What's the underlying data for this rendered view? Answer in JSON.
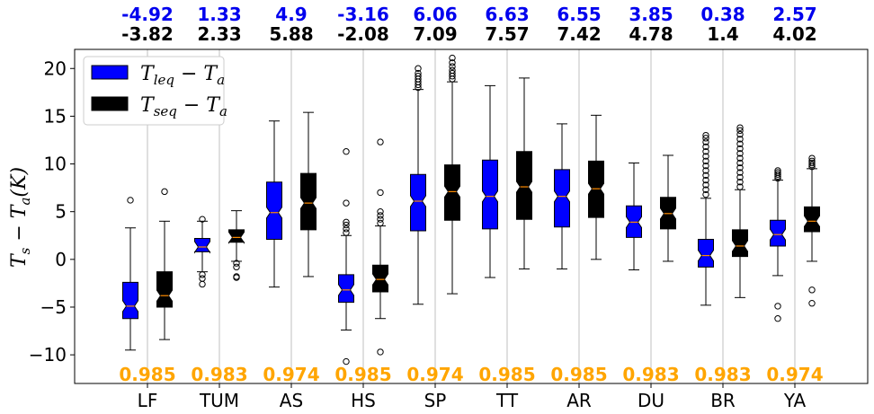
{
  "chart_data": {
    "type": "box",
    "categories": [
      "LF",
      "TUM",
      "AS",
      "HS",
      "SP",
      "TT",
      "AR",
      "DU",
      "BR",
      "YA"
    ],
    "ylabel": "T_s − T_a(K)",
    "ylim": [
      -13,
      22
    ],
    "yticks": [
      -10,
      -5,
      0,
      5,
      10,
      15,
      20
    ],
    "grid": "vertical",
    "legend_placement": "top-left",
    "top_values_blue": [
      "-4.92",
      "1.33",
      "4.9",
      "-3.16",
      "6.06",
      "6.63",
      "6.55",
      "3.85",
      "0.38",
      "2.57"
    ],
    "top_values_black": [
      "-3.82",
      "2.33",
      "5.88",
      "-2.08",
      "7.09",
      "7.57",
      "7.42",
      "4.78",
      "1.4",
      "4.02"
    ],
    "bottom_values_orange": [
      "0.985",
      "0.983",
      "0.974",
      "0.985",
      "0.974",
      "0.985",
      "0.985",
      "0.983",
      "0.983",
      "0.974"
    ],
    "series": [
      {
        "name": "T_leq − T_a",
        "color": "#0000ff",
        "boxes": [
          {
            "whislo": -9.5,
            "q1": -6.2,
            "med": -4.9,
            "q3": -2.4,
            "whishi": 3.3,
            "fliers": [
              6.2
            ]
          },
          {
            "whislo": -1.3,
            "q1": 0.8,
            "med": 1.3,
            "q3": 2.2,
            "whishi": 4.0,
            "fliers": [
              4.2,
              -1.6,
              -2.0,
              -2.6
            ]
          },
          {
            "whislo": -2.9,
            "q1": 2.1,
            "med": 4.9,
            "q3": 8.1,
            "whishi": 14.5,
            "fliers": []
          },
          {
            "whislo": -7.4,
            "q1": -4.5,
            "med": -3.2,
            "q3": -1.6,
            "whishi": 2.5,
            "fliers": [
              2.8,
              3.2,
              3.6,
              3.9,
              5.9,
              11.3,
              -10.7
            ]
          },
          {
            "whislo": -4.7,
            "q1": 3.0,
            "med": 6.1,
            "q3": 8.9,
            "whishi": 17.8,
            "fliers": [
              18.0,
              18.3,
              18.6,
              18.9,
              19.2,
              19.5,
              20.0
            ]
          },
          {
            "whislo": -1.9,
            "q1": 3.2,
            "med": 6.6,
            "q3": 10.4,
            "whishi": 18.2,
            "fliers": []
          },
          {
            "whislo": -1.0,
            "q1": 3.4,
            "med": 6.6,
            "q3": 9.4,
            "whishi": 14.2,
            "fliers": []
          },
          {
            "whislo": -1.1,
            "q1": 2.3,
            "med": 3.9,
            "q3": 5.6,
            "whishi": 10.1,
            "fliers": []
          },
          {
            "whislo": -4.8,
            "q1": -0.8,
            "med": 0.4,
            "q3": 2.1,
            "whishi": 6.4,
            "fliers": [
              6.8,
              7.3,
              7.8,
              8.3,
              8.8,
              9.3,
              9.8,
              10.3,
              10.8,
              11.3,
              11.8,
              12.3,
              12.7,
              13.0
            ]
          },
          {
            "whislo": -1.7,
            "q1": 1.4,
            "med": 2.6,
            "q3": 4.1,
            "whishi": 8.3,
            "fliers": [
              8.5,
              8.7,
              8.9,
              9.1,
              9.3,
              -4.9,
              -6.2
            ]
          }
        ]
      },
      {
        "name": "T_seq − T_a",
        "color": "#000000",
        "boxes": [
          {
            "whislo": -8.4,
            "q1": -5.0,
            "med": -3.8,
            "q3": -1.3,
            "whishi": 4.0,
            "fliers": [
              7.1
            ]
          },
          {
            "whislo": -0.2,
            "q1": 1.8,
            "med": 2.3,
            "q3": 3.1,
            "whishi": 5.1,
            "fliers": [
              -0.4,
              -0.8,
              -1.8,
              -1.9
            ]
          },
          {
            "whislo": -1.8,
            "q1": 3.1,
            "med": 5.9,
            "q3": 9.0,
            "whishi": 15.4,
            "fliers": []
          },
          {
            "whislo": -6.2,
            "q1": -3.4,
            "med": -2.1,
            "q3": -0.6,
            "whishi": 3.5,
            "fliers": [
              3.8,
              4.2,
              4.6,
              5.0,
              7.0,
              12.3,
              -9.7
            ]
          },
          {
            "whislo": -3.6,
            "q1": 4.1,
            "med": 7.1,
            "q3": 9.9,
            "whishi": 18.6,
            "fliers": [
              18.9,
              19.2,
              19.5,
              19.8,
              20.2,
              20.6,
              21.1
            ]
          },
          {
            "whislo": -1.0,
            "q1": 4.2,
            "med": 7.6,
            "q3": 11.3,
            "whishi": 19.0,
            "fliers": []
          },
          {
            "whislo": 0.0,
            "q1": 4.4,
            "med": 7.4,
            "q3": 10.3,
            "whishi": 15.1,
            "fliers": []
          },
          {
            "whislo": -0.2,
            "q1": 3.2,
            "med": 4.8,
            "q3": 6.5,
            "whishi": 10.9,
            "fliers": []
          },
          {
            "whislo": -4.0,
            "q1": 0.3,
            "med": 1.4,
            "q3": 3.1,
            "whishi": 7.3,
            "fliers": [
              7.6,
              8.1,
              8.6,
              9.1,
              9.6,
              10.1,
              10.6,
              11.1,
              11.6,
              12.1,
              12.6,
              13.1,
              13.5,
              13.8
            ]
          },
          {
            "whislo": -0.2,
            "q1": 2.9,
            "med": 4.0,
            "q3": 5.5,
            "whishi": 9.5,
            "fliers": [
              9.7,
              9.9,
              10.1,
              10.3,
              10.6,
              -3.2,
              -4.6
            ]
          }
        ]
      }
    ]
  }
}
